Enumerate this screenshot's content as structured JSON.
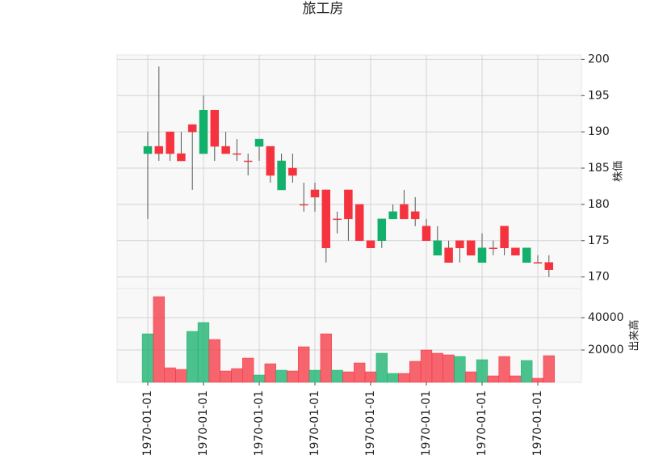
{
  "chart_data": {
    "type": "candlestick",
    "title": "旅工房",
    "y_label": "株価",
    "volume_label": "出来高",
    "up_color": "#12b06a",
    "down_color": "#f5333f",
    "grid": true,
    "xticks": [
      {
        "value": 0,
        "label": "1970-01-01"
      },
      {
        "value": 5,
        "label": "1970-01-01"
      },
      {
        "value": 10,
        "label": "1970-01-01"
      },
      {
        "value": 15,
        "label": "1970-01-01"
      },
      {
        "value": 20,
        "label": "1970-01-01"
      },
      {
        "value": 25,
        "label": "1970-01-01"
      },
      {
        "value": 30,
        "label": "1970-01-01"
      },
      {
        "value": 35,
        "label": "1970-01-01"
      }
    ],
    "ylim": [
      168.4,
      200.6
    ],
    "yticks": [
      170,
      175,
      180,
      185,
      190,
      195,
      200
    ],
    "volume_ylim": [
      0,
      58000
    ],
    "volume_ticks": [
      20000,
      40000
    ],
    "open": [
      187,
      188,
      190,
      187,
      191,
      187,
      193,
      188,
      187,
      186,
      188,
      188,
      182,
      185,
      180,
      182,
      182,
      178,
      182,
      180,
      175,
      175,
      178,
      180,
      179,
      177,
      173,
      174,
      175,
      175,
      172,
      174,
      177,
      174,
      172,
      172,
      172
    ],
    "high": [
      190,
      199,
      190,
      190,
      191,
      195,
      193,
      190,
      189,
      187,
      189,
      188,
      187,
      187,
      183,
      183,
      182,
      179,
      182,
      180,
      175,
      178,
      180,
      182,
      181,
      178,
      177,
      175,
      175,
      175,
      176,
      175,
      177,
      174,
      174,
      173,
      173
    ],
    "low": [
      178,
      186,
      186,
      186,
      182,
      187,
      186,
      187,
      186,
      184,
      186,
      183,
      182,
      183,
      179,
      179,
      172,
      176,
      175,
      175,
      174,
      174,
      178,
      178,
      177,
      175,
      173,
      172,
      172,
      173,
      172,
      173,
      173,
      173,
      172,
      172,
      170
    ],
    "close": [
      188,
      187,
      187,
      186,
      190,
      193,
      188,
      187,
      187,
      186,
      189,
      184,
      186,
      184,
      180,
      181,
      174,
      178,
      178,
      175,
      174,
      178,
      179,
      178,
      178,
      175,
      175,
      172,
      174,
      173,
      174,
      174,
      174,
      173,
      174,
      172,
      171
    ],
    "volume": [
      30000,
      53000,
      9000,
      8000,
      31500,
      37000,
      26500,
      7000,
      8500,
      15000,
      4500,
      11500,
      7500,
      7000,
      22000,
      7500,
      30000,
      7500,
      6500,
      12000,
      6500,
      18000,
      5500,
      5500,
      13000,
      20000,
      18000,
      17000,
      16000,
      6500,
      14000,
      4000,
      16000,
      4000,
      13500,
      2500,
      16500
    ]
  }
}
